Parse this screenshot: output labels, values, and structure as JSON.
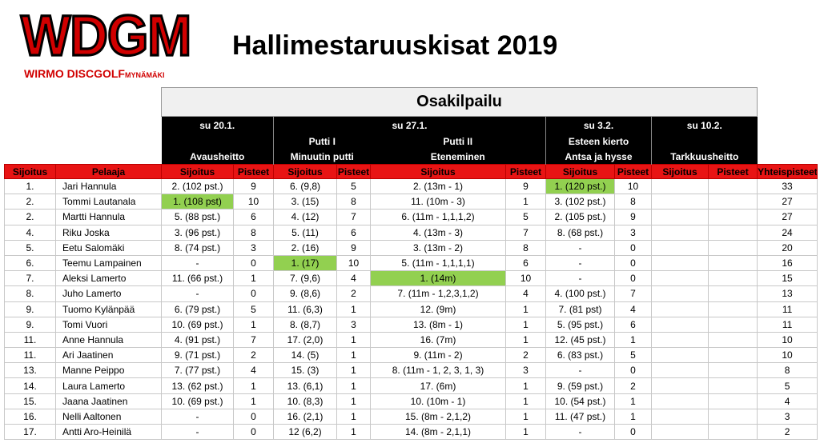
{
  "logo": {
    "main": "WDGM",
    "sub": "WIRMO DISCGOLF",
    "sub_small": "MYNÄMÄKI"
  },
  "title": "Hallimestaruuskisat 2019",
  "section_title": "Osakilpailu",
  "dates": [
    "su 20.1.",
    "su 27.1.",
    "su 3.2.",
    "su 10.2."
  ],
  "events": {
    "avausheitto": "Avausheitto",
    "putti1_line1": "Putti I",
    "putti1_line2": "Minuutin putti",
    "putti2_line1": "Putti II",
    "putti2_line2": "Eteneminen",
    "esteen_line1": "Esteen kierto",
    "esteen_line2": "Antsa ja hysse",
    "tarkkuus": "Tarkkuusheitto"
  },
  "columns": {
    "sijoitus": "Sijoitus",
    "pelaaja": "Pelaaja",
    "pisteet": "Pisteet",
    "yhteispisteet": "Yhteispisteet"
  },
  "rows": [
    {
      "pos": "1.",
      "name": "Jari Hannula",
      "e1": "2. (102 pst.)",
      "p1": "9",
      "e2": "6. (9,8)",
      "p2": "5",
      "e3": "2. (13m - 1)",
      "p3": "9",
      "e4": "1. (120 pst.)",
      "p4": "10",
      "e5": "",
      "p5": "",
      "total": "33"
    },
    {
      "pos": "2.",
      "name": "Tommi Lautanala",
      "e1": "1. (108 pst)",
      "p1": "10",
      "e2": "3. (15)",
      "p2": "8",
      "e3": "11. (10m - 3)",
      "p3": "1",
      "e4": "3. (102 pst.)",
      "p4": "8",
      "e5": "",
      "p5": "",
      "total": "27"
    },
    {
      "pos": "2.",
      "name": "Martti Hannula",
      "e1": "5. (88 pst.)",
      "p1": "6",
      "e2": "4. (12)",
      "p2": "7",
      "e3": "6. (11m - 1,1,1,2)",
      "p3": "5",
      "e4": "2. (105 pst.)",
      "p4": "9",
      "e5": "",
      "p5": "",
      "total": "27"
    },
    {
      "pos": "4.",
      "name": "Riku Joska",
      "e1": "3. (96 pst.)",
      "p1": "8",
      "e2": "5. (11)",
      "p2": "6",
      "e3": "4. (13m - 3)",
      "p3": "7",
      "e4": "8. (68 pst.)",
      "p4": "3",
      "e5": "",
      "p5": "",
      "total": "24"
    },
    {
      "pos": "5.",
      "name": "Eetu Salomäki",
      "e1": "8. (74 pst.)",
      "p1": "3",
      "e2": "2. (16)",
      "p2": "9",
      "e3": "3. (13m - 2)",
      "p3": "8",
      "e4": "-",
      "p4": "0",
      "e5": "",
      "p5": "",
      "total": "20"
    },
    {
      "pos": "6.",
      "name": "Teemu Lampainen",
      "e1": "-",
      "p1": "0",
      "e2": "1. (17)",
      "p2": "10",
      "e3": "5. (11m - 1,1,1,1)",
      "p3": "6",
      "e4": "-",
      "p4": "0",
      "e5": "",
      "p5": "",
      "total": "16"
    },
    {
      "pos": "7.",
      "name": "Aleksi Lamerto",
      "e1": "11. (66 pst.)",
      "p1": "1",
      "e2": "7. (9,6)",
      "p2": "4",
      "e3": "1. (14m)",
      "p3": "10",
      "e4": "-",
      "p4": "0",
      "e5": "",
      "p5": "",
      "total": "15"
    },
    {
      "pos": "8.",
      "name": "Juho Lamerto",
      "e1": "-",
      "p1": "0",
      "e2": "9. (8,6)",
      "p2": "2",
      "e3": "7. (11m - 1,2,3,1,2)",
      "p3": "4",
      "e4": "4. (100 pst.)",
      "p4": "7",
      "e5": "",
      "p5": "",
      "total": "13"
    },
    {
      "pos": "9.",
      "name": "Tuomo Kylänpää",
      "e1": "6. (79 pst.)",
      "p1": "5",
      "e2": "11. (6,3)",
      "p2": "1",
      "e3": "12. (9m)",
      "p3": "1",
      "e4": "7. (81 pst)",
      "p4": "4",
      "e5": "",
      "p5": "",
      "total": "11"
    },
    {
      "pos": "9.",
      "name": "Tomi Vuori",
      "e1": "10. (69 pst.)",
      "p1": "1",
      "e2": "8. (8,7)",
      "p2": "3",
      "e3": "13. (8m - 1)",
      "p3": "1",
      "e4": "5. (95 pst.)",
      "p4": "6",
      "e5": "",
      "p5": "",
      "total": "11"
    },
    {
      "pos": "11.",
      "name": "Anne Hannula",
      "e1": "4. (91 pst.)",
      "p1": "7",
      "e2": "17. (2,0)",
      "p2": "1",
      "e3": "16. (7m)",
      "p3": "1",
      "e4": "12. (45 pst.)",
      "p4": "1",
      "e5": "",
      "p5": "",
      "total": "10"
    },
    {
      "pos": "11.",
      "name": "Ari Jaatinen",
      "e1": "9. (71 pst.)",
      "p1": "2",
      "e2": "14. (5)",
      "p2": "1",
      "e3": "9. (11m - 2)",
      "p3": "2",
      "e4": "6. (83 pst.)",
      "p4": "5",
      "e5": "",
      "p5": "",
      "total": "10"
    },
    {
      "pos": "13.",
      "name": "Manne Peippo",
      "e1": "7. (77 pst.)",
      "p1": "4",
      "e2": "15. (3)",
      "p2": "1",
      "e3": "8. (11m - 1, 2, 3, 1, 3)",
      "p3": "3",
      "e4": "-",
      "p4": "0",
      "e5": "",
      "p5": "",
      "total": "8"
    },
    {
      "pos": "14.",
      "name": "Laura Lamerto",
      "e1": "13. (62 pst.)",
      "p1": "1",
      "e2": "13. (6,1)",
      "p2": "1",
      "e3": "17. (6m)",
      "p3": "1",
      "e4": "9. (59 pst.)",
      "p4": "2",
      "e5": "",
      "p5": "",
      "total": "5"
    },
    {
      "pos": "15.",
      "name": "Jaana Jaatinen",
      "e1": "10. (69 pst.)",
      "p1": "1",
      "e2": "10. (8,3)",
      "p2": "1",
      "e3": "10. (10m - 1)",
      "p3": "1",
      "e4": "10. (54 pst.)",
      "p4": "1",
      "e5": "",
      "p5": "",
      "total": "4"
    },
    {
      "pos": "16.",
      "name": "Nelli Aaltonen",
      "e1": "-",
      "p1": "0",
      "e2": "16. (2,1)",
      "p2": "1",
      "e3": "15. (8m - 2,1,2)",
      "p3": "1",
      "e4": "11. (47 pst.)",
      "p4": "1",
      "e5": "",
      "p5": "",
      "total": "3"
    },
    {
      "pos": "17.",
      "name": "Antti Aro-Heinilä",
      "e1": "-",
      "p1": "0",
      "e2": "12 (6,2)",
      "p2": "1",
      "e3": "14. (8m - 2,1,1)",
      "p3": "1",
      "e4": "-",
      "p4": "0",
      "e5": "",
      "p5": "",
      "total": "2"
    }
  ],
  "highlights": [
    {
      "row": 0,
      "col": "e4"
    },
    {
      "row": 1,
      "col": "e1"
    },
    {
      "row": 5,
      "col": "e2"
    },
    {
      "row": 6,
      "col": "e3"
    }
  ],
  "colors": {
    "header_red": "#e81414",
    "winner_green": "#92d050",
    "band_black": "#000000",
    "logo_red": "#d10000"
  }
}
